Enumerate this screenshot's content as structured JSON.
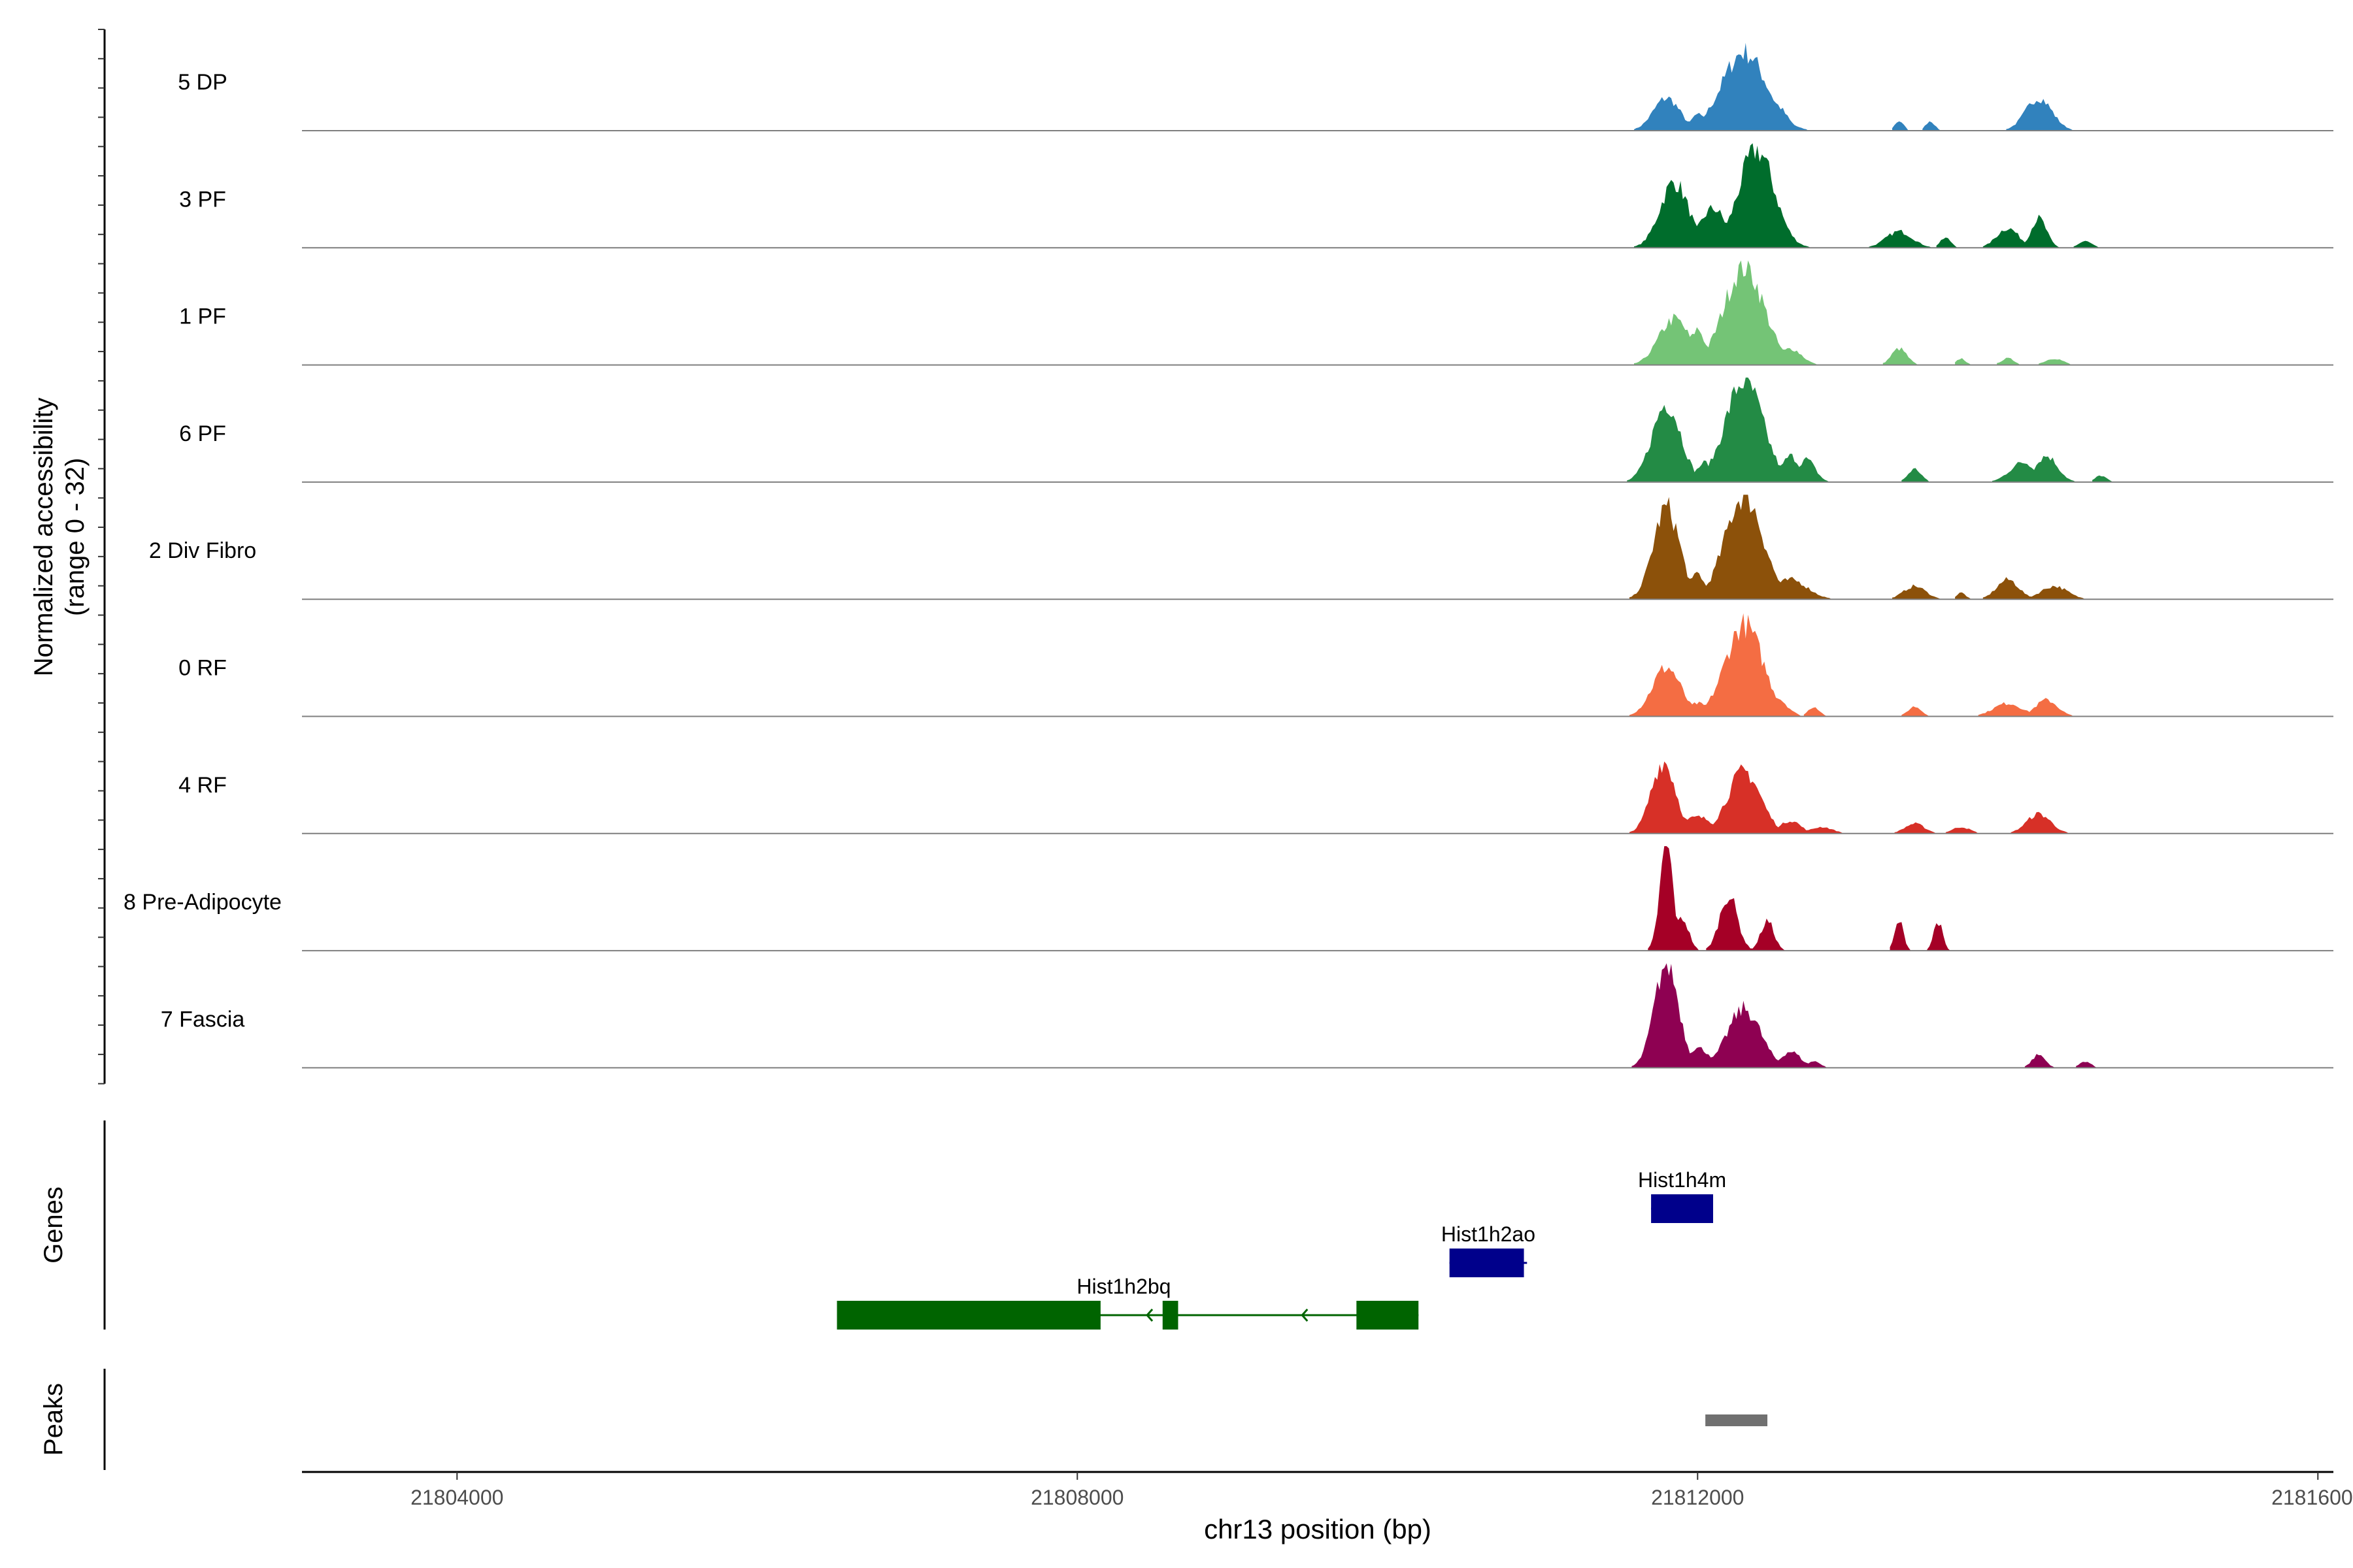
{
  "chart_data": {
    "type": "area",
    "title": "",
    "xlabel": "chr13 position (bp)",
    "ylabel": "Normalized accessibility",
    "ylabel_sub": "(range 0 - 32)",
    "xlim": [
      21803000,
      21816100
    ],
    "ylim": [
      0,
      32
    ],
    "x_ticks": [
      21804000,
      21808000,
      21812000,
      21816000
    ],
    "x_tick_labels": [
      "21804000",
      "21808000",
      "21812000",
      "21816000"
    ],
    "genes_label": "Genes",
    "peaks_label": "Peaks",
    "tracks": [
      {
        "name": "5 DP",
        "color": "#3182bd",
        "peaks": [
          [
            21811800,
            10,
            120
          ],
          [
            21812000,
            5,
            60
          ],
          [
            21812300,
            24,
            200
          ],
          [
            21812500,
            8,
            100
          ],
          [
            21813300,
            3,
            40
          ],
          [
            21813500,
            3,
            40
          ],
          [
            21814200,
            10,
            120
          ]
        ]
      },
      {
        "name": "3 PF",
        "color": "#006d2c",
        "peaks": [
          [
            21811850,
            20,
            130
          ],
          [
            21812100,
            12,
            120
          ],
          [
            21812380,
            30,
            160
          ],
          [
            21812550,
            4,
            80
          ],
          [
            21813300,
            5,
            120
          ],
          [
            21813600,
            3,
            50
          ],
          [
            21814000,
            6,
            100
          ],
          [
            21814200,
            9,
            70
          ],
          [
            21814500,
            2,
            60
          ]
        ]
      },
      {
        "name": "1 PF",
        "color": "#74c476",
        "peaks": [
          [
            21811850,
            14,
            140
          ],
          [
            21812000,
            11,
            70
          ],
          [
            21812300,
            30,
            180
          ],
          [
            21812600,
            5,
            100
          ],
          [
            21813300,
            5,
            70
          ],
          [
            21813700,
            2,
            40
          ],
          [
            21814000,
            2,
            60
          ],
          [
            21814300,
            2,
            80
          ]
        ]
      },
      {
        "name": "6 PF",
        "color": "#238b45",
        "peaks": [
          [
            21811800,
            24,
            130
          ],
          [
            21812050,
            6,
            80
          ],
          [
            21812300,
            31,
            170
          ],
          [
            21812600,
            8,
            80
          ],
          [
            21812700,
            7,
            80
          ],
          [
            21813400,
            4,
            60
          ],
          [
            21814100,
            6,
            120
          ],
          [
            21814250,
            8,
            100
          ],
          [
            21814600,
            2,
            50
          ]
        ]
      },
      {
        "name": "2 Div Fibro",
        "color": "#8c510a",
        "peaks": [
          [
            21811800,
            28,
            120
          ],
          [
            21812000,
            8,
            60
          ],
          [
            21812300,
            32,
            170
          ],
          [
            21812600,
            6,
            150
          ],
          [
            21813400,
            4,
            100
          ],
          [
            21813700,
            2,
            40
          ],
          [
            21814000,
            6,
            100
          ],
          [
            21814300,
            4,
            120
          ]
        ]
      },
      {
        "name": "0 RF",
        "color": "#f46d43",
        "peaks": [
          [
            21811800,
            15,
            130
          ],
          [
            21812000,
            4,
            90
          ],
          [
            21812300,
            28,
            170
          ],
          [
            21812500,
            6,
            100
          ],
          [
            21812750,
            3,
            50
          ],
          [
            21813400,
            3,
            60
          ],
          [
            21814000,
            4,
            130
          ],
          [
            21814250,
            5,
            100
          ]
        ]
      },
      {
        "name": "4 RF",
        "color": "#d73027",
        "peaks": [
          [
            21811780,
            22,
            110
          ],
          [
            21812000,
            5,
            150
          ],
          [
            21812300,
            19,
            150
          ],
          [
            21812600,
            4,
            90
          ],
          [
            21812800,
            2,
            100
          ],
          [
            21813400,
            3,
            90
          ],
          [
            21813700,
            2,
            80
          ],
          [
            21814200,
            6,
            110
          ]
        ]
      },
      {
        "name": "8 Pre-Adipocyte",
        "color": "#a50026",
        "peaks": [
          [
            21811800,
            32,
            60
          ],
          [
            21811900,
            10,
            60
          ],
          [
            21812200,
            17,
            80
          ],
          [
            21812450,
            9,
            60
          ],
          [
            21813300,
            9,
            40
          ],
          [
            21813550,
            9,
            40
          ]
        ]
      },
      {
        "name": "7 Fascia",
        "color": "#8e0152",
        "peaks": [
          [
            21811800,
            32,
            110
          ],
          [
            21812000,
            6,
            120
          ],
          [
            21812300,
            18,
            150
          ],
          [
            21812600,
            5,
            90
          ],
          [
            21812750,
            2,
            60
          ],
          [
            21814200,
            4,
            60
          ],
          [
            21814500,
            2,
            50
          ]
        ]
      }
    ],
    "genes": [
      {
        "name": "Hist1h4m",
        "color": "#00008b",
        "start": 21811700,
        "end": 21812100,
        "exons": [
          [
            21811700,
            21812100
          ]
        ]
      },
      {
        "name": "Hist1h2ao",
        "color": "#00008b",
        "start": 21810400,
        "end": 21810900,
        "exons": [
          [
            21810400,
            21810880
          ]
        ]
      },
      {
        "name": "Hist1h2bq",
        "color": "#006400",
        "start": 21806450,
        "end": 21810200,
        "exons": [
          [
            21806450,
            21808150
          ],
          [
            21808550,
            21808650
          ],
          [
            21809800,
            21810200
          ]
        ],
        "arrows": [
          21808450,
          21809450
        ]
      }
    ],
    "peak_regions": [
      {
        "start": 21812050,
        "end": 21812450,
        "color": "#707070"
      }
    ]
  }
}
